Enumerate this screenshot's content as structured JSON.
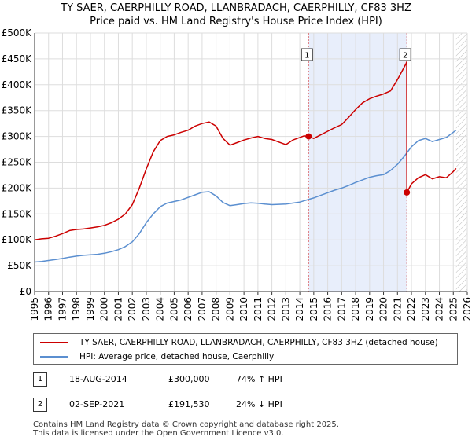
{
  "title_line1": "TY SAER, CAERPHILLY ROAD, LLANBRADACH, CAERPHILLY, CF83 3HZ",
  "title_line2": "Price paid vs. HM Land Registry's House Price Index (HPI)",
  "colors": {
    "property_line": "#cc0000",
    "hpi_line": "#5b8fd0",
    "shade": "#e8eefb",
    "marker_line": "#dd6666",
    "grid": "#dddddd"
  },
  "chart_data": {
    "type": "line",
    "x_range": [
      1995,
      2026
    ],
    "ylim": [
      0,
      500000
    ],
    "y_ticks": [
      0,
      50000,
      100000,
      150000,
      200000,
      250000,
      300000,
      350000,
      400000,
      450000,
      500000
    ],
    "y_tick_labels": [
      "£0",
      "£50K",
      "£100K",
      "£150K",
      "£200K",
      "£250K",
      "£300K",
      "£350K",
      "£400K",
      "£450K",
      "£500K"
    ],
    "x_ticks": [
      1995,
      1996,
      1997,
      1998,
      1999,
      2000,
      2001,
      2002,
      2003,
      2004,
      2005,
      2006,
      2007,
      2008,
      2009,
      2010,
      2011,
      2012,
      2013,
      2014,
      2015,
      2016,
      2017,
      2018,
      2019,
      2020,
      2021,
      2022,
      2023,
      2024,
      2025,
      2026
    ],
    "x_tick_labels": [
      "1995",
      "1996",
      "1997",
      "1998",
      "1999",
      "2000",
      "2001",
      "2002",
      "2003",
      "2004",
      "2005",
      "2006",
      "2007",
      "2008",
      "2009",
      "2010",
      "2011",
      "2012",
      "2013",
      "2014",
      "2015",
      "2016",
      "2017",
      "2018",
      "2019",
      "2020",
      "2021",
      "2022",
      "2023",
      "2024",
      "2025",
      "2026"
    ],
    "shaded_between": [
      2014.63,
      2021.67
    ],
    "hatched_from": 2025.2,
    "series": [
      {
        "name": "TY SAER, CAERPHILLY ROAD, LLANBRADACH, CAERPHILLY, CF83 3HZ (detached house)",
        "x": [
          1995,
          1995.5,
          1996,
          1996.5,
          1997,
          1997.5,
          1998,
          1998.5,
          1999,
          1999.5,
          2000,
          2000.5,
          2001,
          2001.5,
          2002,
          2002.5,
          2003,
          2003.5,
          2004,
          2004.5,
          2005,
          2005.5,
          2006,
          2006.5,
          2007,
          2007.5,
          2008,
          2008.5,
          2009,
          2009.5,
          2010,
          2010.5,
          2011,
          2011.5,
          2012,
          2012.5,
          2013,
          2013.5,
          2014,
          2014.3,
          2014.63,
          2015,
          2015.5,
          2016,
          2016.5,
          2017,
          2017.5,
          2018,
          2018.5,
          2019,
          2019.5,
          2020,
          2020.5,
          2021,
          2021.3,
          2021.6,
          2021.66,
          2021.67,
          2022,
          2022.5,
          2023,
          2023.5,
          2024,
          2024.5,
          2025,
          2025.2
        ],
        "values": [
          100000,
          102000,
          103000,
          107000,
          112000,
          118000,
          120000,
          121000,
          123000,
          125000,
          128000,
          133000,
          140000,
          150000,
          168000,
          200000,
          237000,
          270000,
          292000,
          300000,
          303000,
          308000,
          312000,
          320000,
          325000,
          328000,
          320000,
          296000,
          283000,
          288000,
          293000,
          297000,
          300000,
          296000,
          294000,
          289000,
          284000,
          293000,
          298000,
          301000,
          300000,
          296000,
          303000,
          310000,
          317000,
          323000,
          337000,
          352000,
          365000,
          373000,
          378000,
          382000,
          388000,
          410000,
          425000,
          440000,
          444000,
          191530,
          208000,
          220000,
          226000,
          218000,
          222000,
          220000,
          232000,
          238000
        ]
      },
      {
        "name": "HPI: Average price, detached house, Caerphilly",
        "x": [
          1995,
          1995.5,
          1996,
          1996.5,
          1997,
          1997.5,
          1998,
          1998.5,
          1999,
          1999.5,
          2000,
          2000.5,
          2001,
          2001.5,
          2002,
          2002.5,
          2003,
          2003.5,
          2004,
          2004.5,
          2005,
          2005.5,
          2006,
          2006.5,
          2007,
          2007.5,
          2008,
          2008.5,
          2009,
          2009.5,
          2010,
          2010.5,
          2011,
          2011.5,
          2012,
          2012.5,
          2013,
          2013.5,
          2014,
          2014.5,
          2015,
          2015.5,
          2016,
          2016.5,
          2017,
          2017.5,
          2018,
          2018.5,
          2019,
          2019.5,
          2020,
          2020.5,
          2021,
          2021.5,
          2022,
          2022.5,
          2023,
          2023.5,
          2024,
          2024.5,
          2025,
          2025.2
        ],
        "values": [
          57000,
          58000,
          60000,
          62000,
          64000,
          66500,
          68500,
          70000,
          71000,
          72000,
          74000,
          77000,
          81000,
          87000,
          96000,
          112000,
          133000,
          150000,
          164000,
          171000,
          174000,
          177000,
          182000,
          187000,
          192000,
          193000,
          185000,
          172000,
          166000,
          168000,
          170000,
          171500,
          170500,
          169000,
          168000,
          168500,
          169000,
          171000,
          173000,
          177000,
          181000,
          186000,
          191000,
          196000,
          200000,
          205000,
          211000,
          216000,
          221000,
          224000,
          226000,
          234000,
          246000,
          262000,
          280000,
          292000,
          296000,
          290000,
          294000,
          298000,
          308000,
          312000
        ]
      }
    ],
    "sales": [
      {
        "marker": "1",
        "x": 2014.63,
        "value": 300000
      },
      {
        "marker": "2",
        "x": 2021.67,
        "value": 191530
      }
    ]
  },
  "legend": {
    "property_label": "TY SAER, CAERPHILLY ROAD, LLANBRADACH, CAERPHILLY, CF83 3HZ (detached house)",
    "hpi_label": "HPI: Average price, detached house, Caerphilly"
  },
  "sales_table": [
    {
      "marker": "1",
      "date": "18-AUG-2014",
      "price": "£300,000",
      "hpi_change": "74% ↑ HPI"
    },
    {
      "marker": "2",
      "date": "02-SEP-2021",
      "price": "£191,530",
      "hpi_change": "24% ↓ HPI"
    }
  ],
  "footer_line1": "Contains HM Land Registry data © Crown copyright and database right 2025.",
  "footer_line2": "This data is licensed under the Open Government Licence v3.0."
}
